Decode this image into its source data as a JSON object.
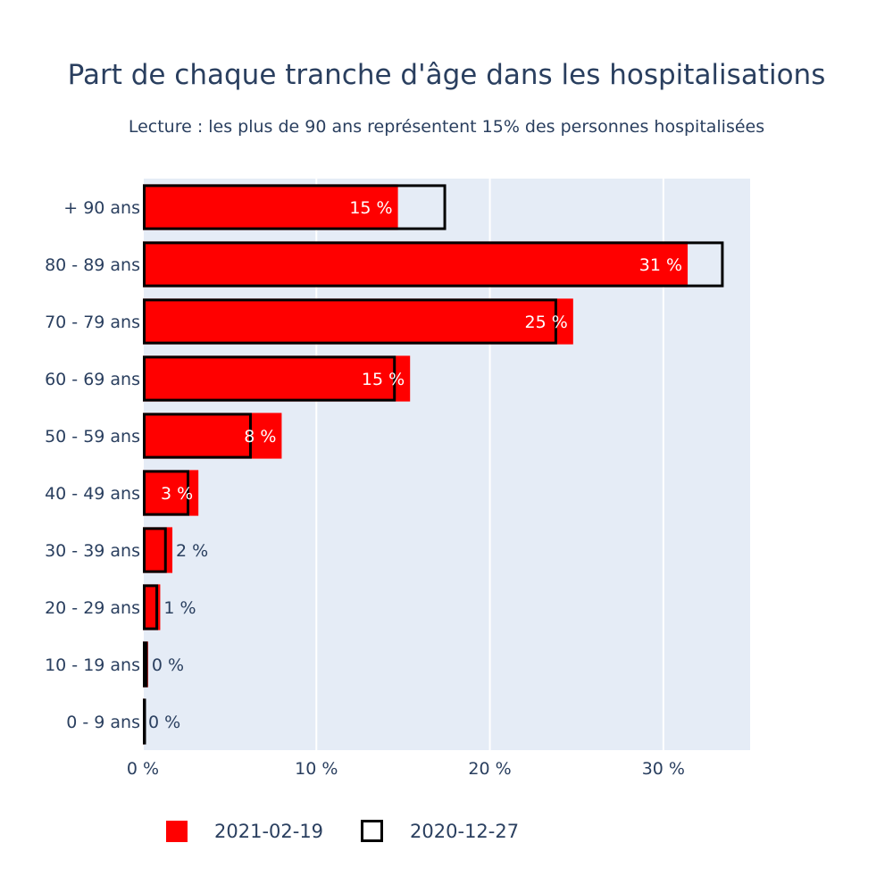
{
  "chart_data": {
    "type": "bar",
    "orientation": "horizontal",
    "title": "Part de chaque tranche d'âge dans les hospitalisations",
    "subtitle": "Lecture : les plus de 90 ans représentent 15% des personnes hospitalisées",
    "categories": [
      "+ 90 ans",
      "80 - 89 ans",
      "70 - 79 ans",
      "60 - 69 ans",
      "50 - 59 ans",
      "40 - 49 ans",
      "30 - 39 ans",
      "20 - 29 ans",
      "10 - 19 ans",
      "0 - 9 ans"
    ],
    "series": [
      {
        "name": "2021-02-19",
        "style": "filled",
        "color": "#ff0000",
        "values": [
          14.7,
          31.4,
          24.8,
          15.4,
          8.0,
          3.2,
          1.7,
          1.0,
          0.3,
          0.1
        ],
        "labels": [
          "15 %",
          "31 %",
          "25 %",
          "15 %",
          "8 %",
          "3 %",
          "2 %",
          "1 %",
          "0 %",
          "0 %"
        ]
      },
      {
        "name": "2020-12-27",
        "style": "outline",
        "color": "#000000",
        "values": [
          17.4,
          33.4,
          23.8,
          14.5,
          6.2,
          2.6,
          1.3,
          0.8,
          0.2,
          0.1
        ]
      }
    ],
    "xlim": [
      0,
      35
    ],
    "x_ticks": [
      0,
      10,
      20,
      30
    ],
    "x_tick_labels": [
      "0 %",
      "10 %",
      "20 %",
      "30 %"
    ],
    "grid": true,
    "plot_background": "#e5ecf6",
    "legend_position": "bottom-left"
  }
}
